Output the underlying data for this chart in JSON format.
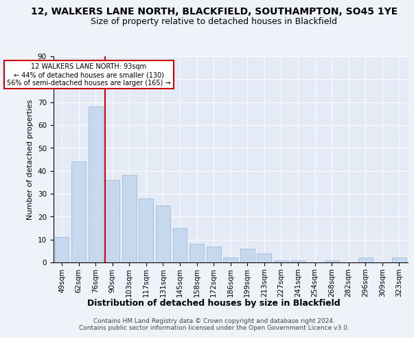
{
  "title": "12, WALKERS LANE NORTH, BLACKFIELD, SOUTHAMPTON, SO45 1YE",
  "subtitle": "Size of property relative to detached houses in Blackfield",
  "xlabel": "Distribution of detached houses by size in Blackfield",
  "ylabel": "Number of detached properties",
  "categories": [
    "49sqm",
    "62sqm",
    "76sqm",
    "90sqm",
    "103sqm",
    "117sqm",
    "131sqm",
    "145sqm",
    "158sqm",
    "172sqm",
    "186sqm",
    "199sqm",
    "213sqm",
    "227sqm",
    "241sqm",
    "254sqm",
    "268sqm",
    "282sqm",
    "296sqm",
    "309sqm",
    "323sqm"
  ],
  "values": [
    11,
    44,
    68,
    36,
    38,
    28,
    25,
    15,
    8,
    7,
    2,
    6,
    4,
    1,
    1,
    0,
    1,
    0,
    2,
    0,
    2
  ],
  "bar_color": "#c5d8ed",
  "bar_edge_color": "#a0bcd8",
  "vline_color": "#cc0000",
  "annotation_text": "12 WALKERS LANE NORTH: 93sqm\n← 44% of detached houses are smaller (130)\n56% of semi-detached houses are larger (165) →",
  "annotation_box_color": "#ffffff",
  "annotation_box_edge": "#cc0000",
  "ylim": [
    0,
    90
  ],
  "yticks": [
    0,
    10,
    20,
    30,
    40,
    50,
    60,
    70,
    80,
    90
  ],
  "bg_color": "#eef2f9",
  "plot_bg_color": "#e4eaf6",
  "footer": "Contains HM Land Registry data © Crown copyright and database right 2024.\nContains public sector information licensed under the Open Government Licence v3.0.",
  "title_fontsize": 10,
  "subtitle_fontsize": 9,
  "xlabel_fontsize": 9,
  "ylabel_fontsize": 8,
  "tick_fontsize": 7.5,
  "footer_fontsize": 6.5
}
